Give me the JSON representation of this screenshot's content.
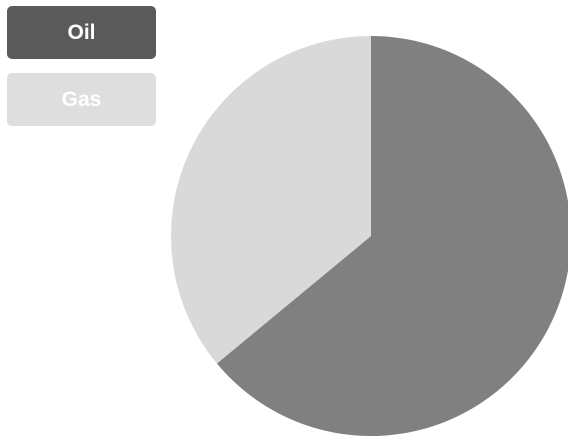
{
  "legend": {
    "items": [
      {
        "label": "Oil",
        "active": true
      },
      {
        "label": "Gas",
        "active": false
      }
    ]
  },
  "colors": {
    "oil_slice": "#808080",
    "gas_slice": "#d9d9d9",
    "legend_active_bg": "#5a5a5a",
    "legend_inactive_bg": "#dedede",
    "legend_text": "#ffffff"
  },
  "chart_data": {
    "type": "pie",
    "categories": [
      "Oil",
      "Gas"
    ],
    "values": [
      64,
      36
    ],
    "start_angle_deg": 0,
    "direction": "clockwise",
    "legend_position": "top-left"
  }
}
